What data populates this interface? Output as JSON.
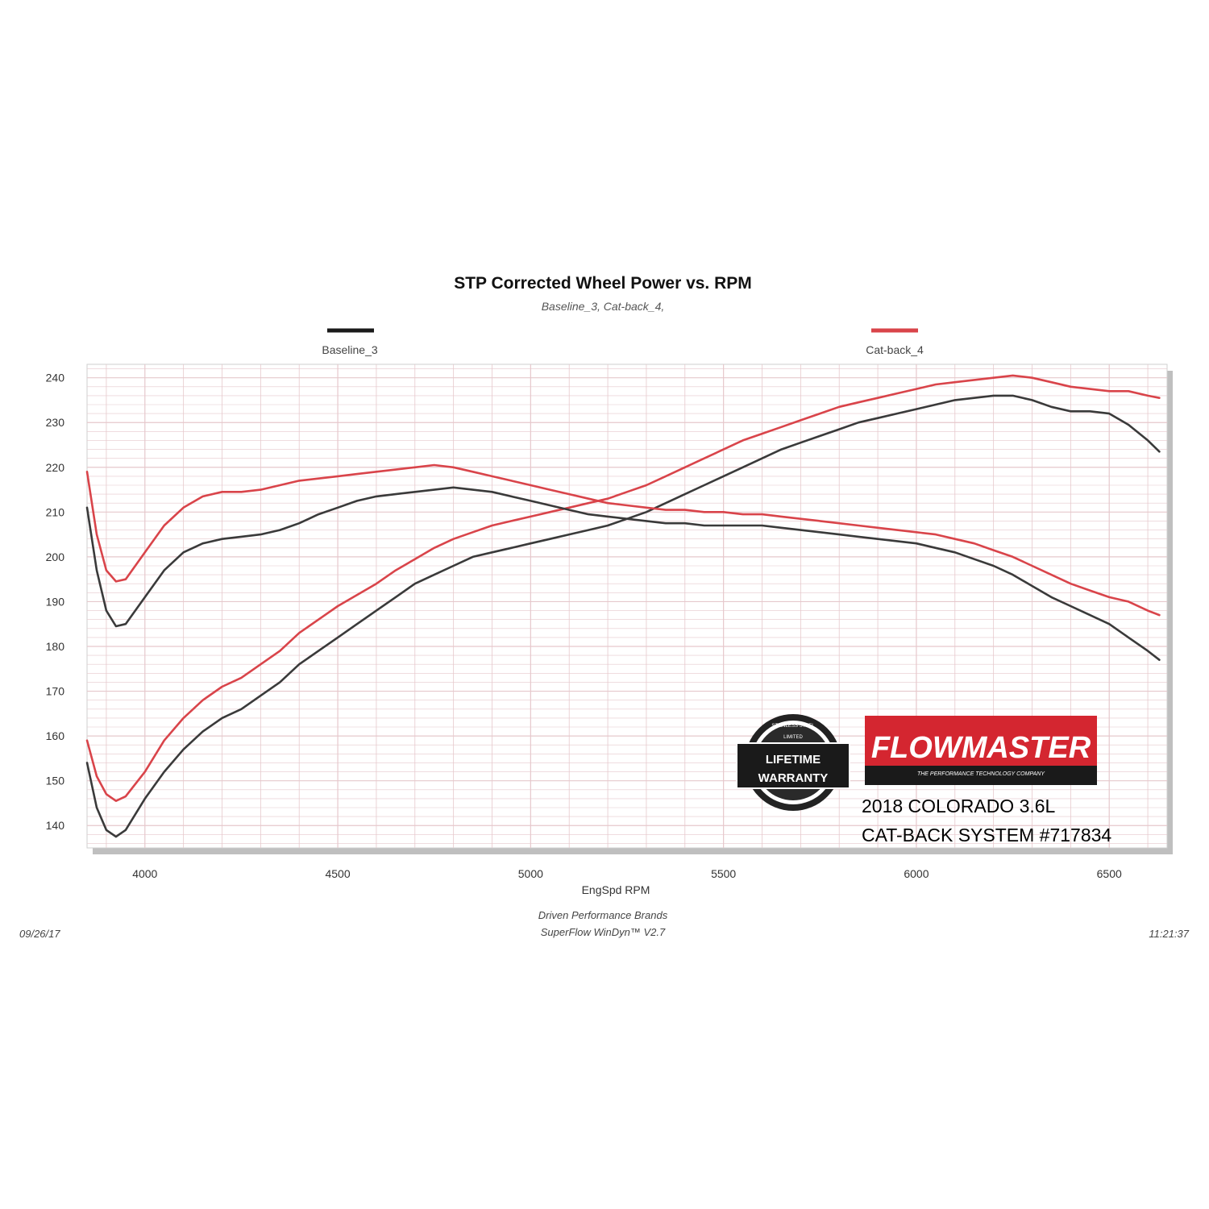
{
  "chart_data": {
    "type": "line",
    "title": "STP Corrected Wheel Power vs. RPM",
    "subtitle": "Baseline_3, Cat-back_4,",
    "xlabel": "EngSpd  RPM",
    "ylabel": "",
    "xlim": [
      3850,
      6650
    ],
    "ylim": [
      135,
      243
    ],
    "xticks": [
      4000,
      4500,
      5000,
      5500,
      6000,
      6500
    ],
    "yticks": [
      140,
      150,
      160,
      170,
      180,
      190,
      200,
      210,
      220,
      230,
      240
    ],
    "grid": true,
    "legend": "top",
    "colors": {
      "baseline": "#3a3a3a",
      "catback": "#d9444a",
      "grid": "#e6c8cc"
    },
    "series": [
      {
        "name": "Baseline_3",
        "measure": "power",
        "color": "#3a3a3a",
        "points": [
          [
            3850,
            154
          ],
          [
            3875,
            144
          ],
          [
            3900,
            139
          ],
          [
            3925,
            137.5
          ],
          [
            3950,
            139
          ],
          [
            4000,
            146
          ],
          [
            4050,
            152
          ],
          [
            4100,
            157
          ],
          [
            4150,
            161
          ],
          [
            4200,
            164
          ],
          [
            4250,
            166
          ],
          [
            4300,
            169
          ],
          [
            4350,
            172
          ],
          [
            4400,
            176
          ],
          [
            4450,
            179
          ],
          [
            4500,
            182
          ],
          [
            4550,
            185
          ],
          [
            4600,
            188
          ],
          [
            4650,
            191
          ],
          [
            4700,
            194
          ],
          [
            4750,
            196
          ],
          [
            4800,
            198
          ],
          [
            4850,
            200
          ],
          [
            4900,
            201
          ],
          [
            4950,
            202
          ],
          [
            5000,
            203
          ],
          [
            5050,
            204
          ],
          [
            5100,
            205
          ],
          [
            5150,
            206
          ],
          [
            5200,
            207
          ],
          [
            5250,
            208.5
          ],
          [
            5300,
            210
          ],
          [
            5350,
            212
          ],
          [
            5400,
            214
          ],
          [
            5450,
            216
          ],
          [
            5500,
            218
          ],
          [
            5550,
            220
          ],
          [
            5600,
            222
          ],
          [
            5650,
            224
          ],
          [
            5700,
            225.5
          ],
          [
            5750,
            227
          ],
          [
            5800,
            228.5
          ],
          [
            5850,
            230
          ],
          [
            5900,
            231
          ],
          [
            5950,
            232
          ],
          [
            6000,
            233
          ],
          [
            6050,
            234
          ],
          [
            6100,
            235
          ],
          [
            6150,
            235.5
          ],
          [
            6200,
            236
          ],
          [
            6250,
            236
          ],
          [
            6300,
            235
          ],
          [
            6350,
            233.5
          ],
          [
            6400,
            232.5
          ],
          [
            6450,
            232.5
          ],
          [
            6500,
            232
          ],
          [
            6550,
            229.5
          ],
          [
            6600,
            226
          ],
          [
            6630,
            223.5
          ]
        ]
      },
      {
        "name": "Cat-back_4",
        "measure": "power",
        "color": "#d9444a",
        "points": [
          [
            3850,
            159
          ],
          [
            3875,
            151
          ],
          [
            3900,
            147
          ],
          [
            3925,
            145.5
          ],
          [
            3950,
            146.5
          ],
          [
            4000,
            152
          ],
          [
            4050,
            159
          ],
          [
            4100,
            164
          ],
          [
            4150,
            168
          ],
          [
            4200,
            171
          ],
          [
            4250,
            173
          ],
          [
            4300,
            176
          ],
          [
            4350,
            179
          ],
          [
            4400,
            183
          ],
          [
            4450,
            186
          ],
          [
            4500,
            189
          ],
          [
            4550,
            191.5
          ],
          [
            4600,
            194
          ],
          [
            4650,
            197
          ],
          [
            4700,
            199.5
          ],
          [
            4750,
            202
          ],
          [
            4800,
            204
          ],
          [
            4850,
            205.5
          ],
          [
            4900,
            207
          ],
          [
            4950,
            208
          ],
          [
            5000,
            209
          ],
          [
            5050,
            210
          ],
          [
            5100,
            211
          ],
          [
            5150,
            212
          ],
          [
            5200,
            213
          ],
          [
            5250,
            214.5
          ],
          [
            5300,
            216
          ],
          [
            5350,
            218
          ],
          [
            5400,
            220
          ],
          [
            5450,
            222
          ],
          [
            5500,
            224
          ],
          [
            5550,
            226
          ],
          [
            5600,
            227.5
          ],
          [
            5650,
            229
          ],
          [
            5700,
            230.5
          ],
          [
            5750,
            232
          ],
          [
            5800,
            233.5
          ],
          [
            5850,
            234.5
          ],
          [
            5900,
            235.5
          ],
          [
            5950,
            236.5
          ],
          [
            6000,
            237.5
          ],
          [
            6050,
            238.5
          ],
          [
            6100,
            239
          ],
          [
            6150,
            239.5
          ],
          [
            6200,
            240
          ],
          [
            6250,
            240.5
          ],
          [
            6300,
            240
          ],
          [
            6350,
            239
          ],
          [
            6400,
            238
          ],
          [
            6450,
            237.5
          ],
          [
            6500,
            237
          ],
          [
            6550,
            237
          ],
          [
            6600,
            236
          ],
          [
            6630,
            235.5
          ]
        ]
      },
      {
        "name": "Baseline_3",
        "measure": "torque",
        "color": "#3a3a3a",
        "points": [
          [
            3850,
            211
          ],
          [
            3875,
            197
          ],
          [
            3900,
            188
          ],
          [
            3925,
            184.5
          ],
          [
            3950,
            185
          ],
          [
            4000,
            191
          ],
          [
            4050,
            197
          ],
          [
            4100,
            201
          ],
          [
            4150,
            203
          ],
          [
            4200,
            204
          ],
          [
            4250,
            204.5
          ],
          [
            4300,
            205
          ],
          [
            4350,
            206
          ],
          [
            4400,
            207.5
          ],
          [
            4450,
            209.5
          ],
          [
            4500,
            211
          ],
          [
            4550,
            212.5
          ],
          [
            4600,
            213.5
          ],
          [
            4650,
            214
          ],
          [
            4700,
            214.5
          ],
          [
            4750,
            215
          ],
          [
            4800,
            215.5
          ],
          [
            4850,
            215
          ],
          [
            4900,
            214.5
          ],
          [
            4950,
            213.5
          ],
          [
            5000,
            212.5
          ],
          [
            5050,
            211.5
          ],
          [
            5100,
            210.5
          ],
          [
            5150,
            209.5
          ],
          [
            5200,
            209
          ],
          [
            5250,
            208.5
          ],
          [
            5300,
            208
          ],
          [
            5350,
            207.5
          ],
          [
            5400,
            207.5
          ],
          [
            5450,
            207
          ],
          [
            5500,
            207
          ],
          [
            5550,
            207
          ],
          [
            5600,
            207
          ],
          [
            5650,
            206.5
          ],
          [
            5700,
            206
          ],
          [
            5750,
            205.5
          ],
          [
            5800,
            205
          ],
          [
            5850,
            204.5
          ],
          [
            5900,
            204
          ],
          [
            5950,
            203.5
          ],
          [
            6000,
            203
          ],
          [
            6050,
            202
          ],
          [
            6100,
            201
          ],
          [
            6150,
            199.5
          ],
          [
            6200,
            198
          ],
          [
            6250,
            196
          ],
          [
            6300,
            193.5
          ],
          [
            6350,
            191
          ],
          [
            6400,
            189
          ],
          [
            6450,
            187
          ],
          [
            6500,
            185
          ],
          [
            6550,
            182
          ],
          [
            6600,
            179
          ],
          [
            6630,
            177
          ]
        ]
      },
      {
        "name": "Cat-back_4",
        "measure": "torque",
        "color": "#d9444a",
        "points": [
          [
            3850,
            219
          ],
          [
            3875,
            205
          ],
          [
            3900,
            197
          ],
          [
            3925,
            194.5
          ],
          [
            3950,
            195
          ],
          [
            4000,
            201
          ],
          [
            4050,
            207
          ],
          [
            4100,
            211
          ],
          [
            4150,
            213.5
          ],
          [
            4200,
            214.5
          ],
          [
            4250,
            214.5
          ],
          [
            4300,
            215
          ],
          [
            4350,
            216
          ],
          [
            4400,
            217
          ],
          [
            4450,
            217.5
          ],
          [
            4500,
            218
          ],
          [
            4550,
            218.5
          ],
          [
            4600,
            219
          ],
          [
            4650,
            219.5
          ],
          [
            4700,
            220
          ],
          [
            4750,
            220.5
          ],
          [
            4800,
            220
          ],
          [
            4850,
            219
          ],
          [
            4900,
            218
          ],
          [
            4950,
            217
          ],
          [
            5000,
            216
          ],
          [
            5050,
            215
          ],
          [
            5100,
            214
          ],
          [
            5150,
            213
          ],
          [
            5200,
            212
          ],
          [
            5250,
            211.5
          ],
          [
            5300,
            211
          ],
          [
            5350,
            210.5
          ],
          [
            5400,
            210.5
          ],
          [
            5450,
            210
          ],
          [
            5500,
            210
          ],
          [
            5550,
            209.5
          ],
          [
            5600,
            209.5
          ],
          [
            5650,
            209
          ],
          [
            5700,
            208.5
          ],
          [
            5750,
            208
          ],
          [
            5800,
            207.5
          ],
          [
            5850,
            207
          ],
          [
            5900,
            206.5
          ],
          [
            5950,
            206
          ],
          [
            6000,
            205.5
          ],
          [
            6050,
            205
          ],
          [
            6100,
            204
          ],
          [
            6150,
            203
          ],
          [
            6200,
            201.5
          ],
          [
            6250,
            200
          ],
          [
            6300,
            198
          ],
          [
            6350,
            196
          ],
          [
            6400,
            194
          ],
          [
            6450,
            192.5
          ],
          [
            6500,
            191
          ],
          [
            6550,
            190
          ],
          [
            6600,
            188
          ],
          [
            6630,
            187
          ]
        ]
      }
    ],
    "legend_entries": [
      {
        "label": "Baseline_3",
        "color": "#1a1a1a"
      },
      {
        "label": "Cat-back_4",
        "color": "#d9444a"
      }
    ]
  },
  "footer": {
    "date": "09/26/17",
    "time": "11:21:37",
    "line1": "Driven Performance Brands",
    "line2": "SuperFlow WinDyn™  V2.7"
  },
  "product": {
    "line1": "2018 COLORADO 3.6L",
    "line2": "CAT-BACK SYSTEM #717834"
  },
  "brand_logo": {
    "name": "FLOWMASTER",
    "tagline": "THE PERFORMANCE TECHNOLOGY COMPANY",
    "color": "#d42630"
  },
  "warranty_badge": {
    "top_text": "STAINLESS STEEL",
    "line1": "LIFETIME",
    "line2": "WARRANTY",
    "small": "LIMITED"
  }
}
